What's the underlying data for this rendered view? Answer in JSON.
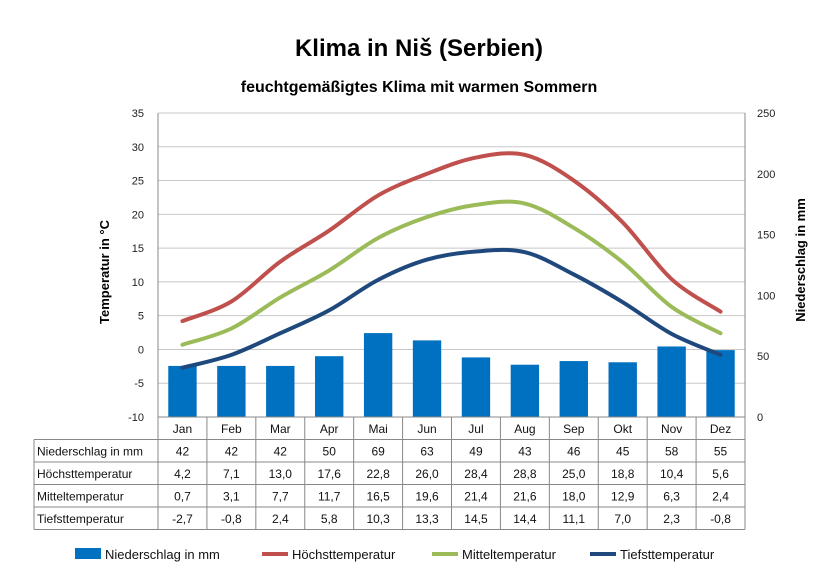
{
  "chart_data": {
    "type": "bar+line",
    "title": "Klima in Niš (Serbien)",
    "subtitle": "feuchtgemäßigtes Klima mit warmen Sommern",
    "categories": [
      "Jan",
      "Feb",
      "Mar",
      "Apr",
      "Mai",
      "Jun",
      "Jul",
      "Aug",
      "Sep",
      "Okt",
      "Nov",
      "Dez"
    ],
    "ylabel_left": "Temperatur in °C",
    "ylabel_right": "Niederschlag in mm",
    "ylim_left": [
      -10,
      35
    ],
    "ylim_right": [
      0,
      250
    ],
    "yticks_left": [
      "-10",
      "-5",
      "0",
      "5",
      "10",
      "15",
      "20",
      "25",
      "30",
      "35"
    ],
    "yticks_right": [
      "0",
      "50",
      "100",
      "150",
      "200",
      "250"
    ],
    "grid": true,
    "legend_position": "bottom",
    "series": [
      {
        "name": "Niederschlag in mm",
        "type": "bar",
        "axis": "right",
        "color": "#0070C0",
        "values": [
          42,
          42,
          42,
          50,
          69,
          63,
          49,
          43,
          46,
          45,
          58,
          55
        ],
        "labels": [
          "42",
          "42",
          "42",
          "50",
          "69",
          "63",
          "49",
          "43",
          "46",
          "45",
          "58",
          "55"
        ]
      },
      {
        "name": "Höchsttemperatur",
        "type": "line",
        "axis": "left",
        "color": "#C0504D",
        "values": [
          4.2,
          7.1,
          13.0,
          17.6,
          22.8,
          26.0,
          28.4,
          28.8,
          25.0,
          18.8,
          10.4,
          5.6
        ],
        "labels": [
          "4,2",
          "7,1",
          "13,0",
          "17,6",
          "22,8",
          "26,0",
          "28,4",
          "28,8",
          "25,0",
          "18,8",
          "10,4",
          "5,6"
        ]
      },
      {
        "name": "Mitteltemperatur",
        "type": "line",
        "axis": "left",
        "color": "#9BBB59",
        "values": [
          0.7,
          3.1,
          7.7,
          11.7,
          16.5,
          19.6,
          21.4,
          21.6,
          18.0,
          12.9,
          6.3,
          2.4
        ],
        "labels": [
          "0,7",
          "3,1",
          "7,7",
          "11,7",
          "16,5",
          "19,6",
          "21,4",
          "21,6",
          "18,0",
          "12,9",
          "6,3",
          "2,4"
        ]
      },
      {
        "name": "Tiefsttemperatur",
        "type": "line",
        "axis": "left",
        "color": "#1F497D",
        "values": [
          -2.7,
          -0.8,
          2.4,
          5.8,
          10.3,
          13.3,
          14.5,
          14.4,
          11.1,
          7.0,
          2.3,
          -0.8
        ],
        "labels": [
          "-2,7",
          "-0,8",
          "2,4",
          "5,8",
          "10,3",
          "13,3",
          "14,5",
          "14,4",
          "11,1",
          "7,0",
          "2,3",
          "-0,8"
        ]
      }
    ]
  }
}
